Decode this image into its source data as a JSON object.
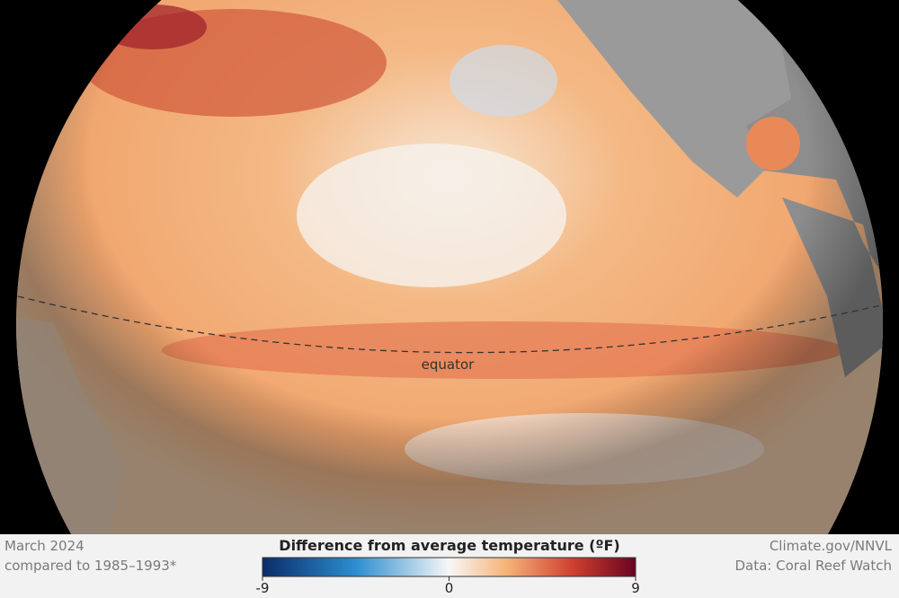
{
  "map": {
    "label": "equator"
  },
  "footer": {
    "left": [
      "March 2024",
      "compared to 1985–1993*"
    ],
    "right": [
      "Climate.gov/NNVL",
      "Data: Coral Reef Watch"
    ]
  },
  "legend": {
    "title": "Difference from average temperature (ºF)",
    "range": [
      -9,
      9
    ],
    "ticks": [
      -9,
      0,
      9
    ]
  }
}
